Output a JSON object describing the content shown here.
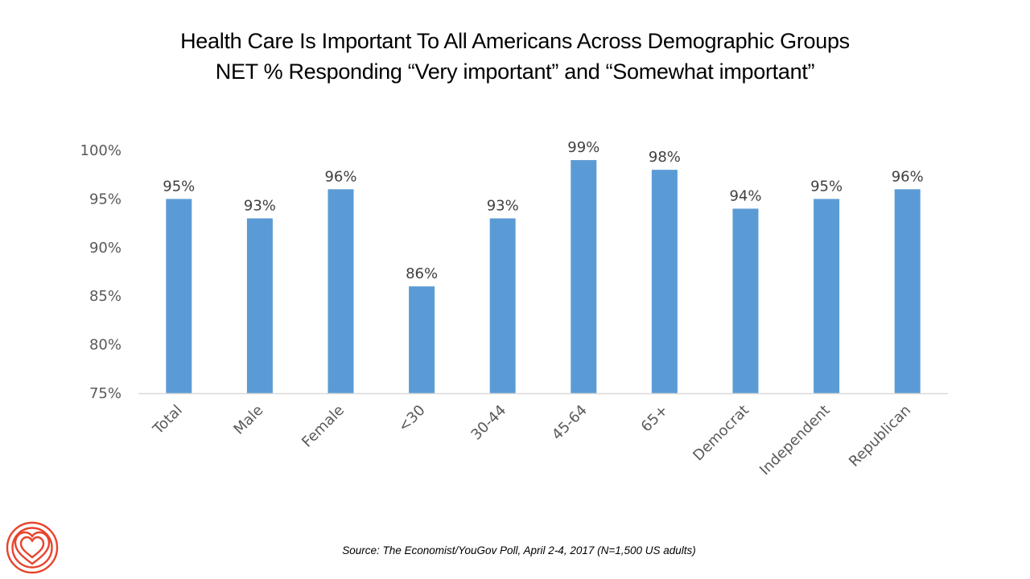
{
  "header": {
    "title_line1": "Health Care Is Important To All Americans Across Demographic Groups",
    "title_line2": "NET % Responding “Very important” and “Somewhat important”"
  },
  "footer": {
    "source": "Source: The Economist/YouGov Poll, April 2-4, 2017 (N=1,500 US adults)",
    "logo_icon": "heart-rings-icon"
  },
  "colors": {
    "bar": "#5b9bd5",
    "logo": "#e8432c",
    "axis": "#d9d9d9"
  },
  "chart_data": {
    "type": "bar",
    "title": "Health Care Is Important To All Americans Across Demographic Groups",
    "subtitle": "NET % Responding “Very important” and “Somewhat important”",
    "xlabel": "",
    "ylabel": "",
    "categories": [
      "Total",
      "Male",
      "Female",
      "<30",
      "30-44",
      "45-64",
      "65+",
      "Democrat",
      "Independent",
      "Republican"
    ],
    "values": [
      95,
      93,
      96,
      86,
      93,
      99,
      98,
      94,
      95,
      96
    ],
    "data_labels": [
      "95%",
      "93%",
      "96%",
      "86%",
      "93%",
      "99%",
      "98%",
      "94%",
      "95%",
      "96%"
    ],
    "ylim": [
      75,
      100
    ],
    "yticks": [
      75,
      80,
      85,
      90,
      95,
      100
    ],
    "ytick_labels": [
      "75%",
      "80%",
      "85%",
      "90%",
      "95%",
      "100%"
    ],
    "grid": false,
    "legend": "none",
    "x_label_rotation": "-45deg"
  }
}
